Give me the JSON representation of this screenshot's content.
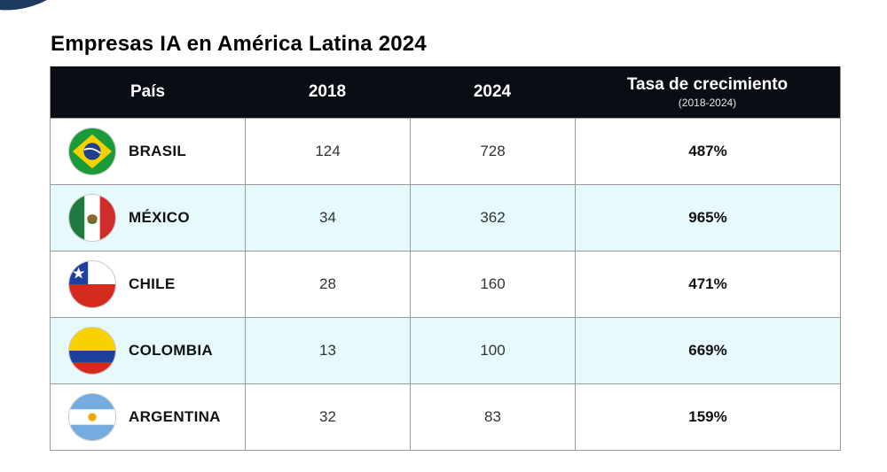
{
  "title": "Empresas IA en América Latina 2024",
  "headers": {
    "country": "País",
    "y2018": "2018",
    "y2024": "2024",
    "growth": "Tasa de crecimiento",
    "growth_sub": "(2018-2024)"
  },
  "rows": [
    {
      "country": "BRASIL",
      "flag": "brazil-flag-icon",
      "v2018": "124",
      "v2024": "728",
      "growth": "487%"
    },
    {
      "country": "MÉXICO",
      "flag": "mexico-flag-icon",
      "v2018": "34",
      "v2024": "362",
      "growth": "965%"
    },
    {
      "country": "CHILE",
      "flag": "chile-flag-icon",
      "v2018": "28",
      "v2024": "160",
      "growth": "471%"
    },
    {
      "country": "COLOMBIA",
      "flag": "colombia-flag-icon",
      "v2018": "13",
      "v2024": "100",
      "growth": "669%"
    },
    {
      "country": "ARGENTINA",
      "flag": "argentina-flag-icon",
      "v2018": "32",
      "v2024": "83",
      "growth": "159%"
    }
  ],
  "colors": {
    "header_bg": "#0b0d14",
    "alt_row_bg": "#e6fafb",
    "border": "#9a9a9a"
  }
}
